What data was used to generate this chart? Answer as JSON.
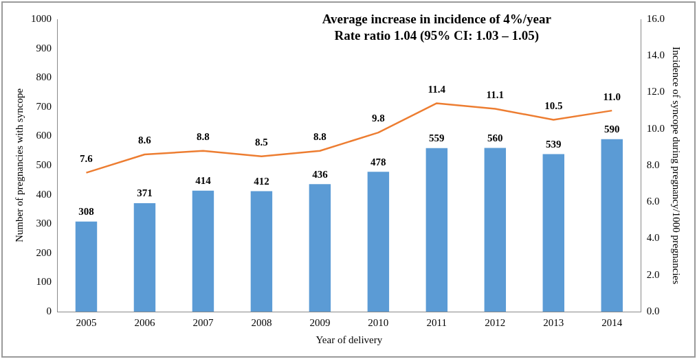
{
  "chart_data": {
    "type": "bar",
    "title": "Average increase in incidence of 4%/year",
    "subtitle": "Rate ratio 1.04 (95% CI: 1.03 – 1.05)",
    "xlabel": "Year of delivery",
    "ylabel": "Number of pregnancies with syncope",
    "y2label": "Incidence of syncope during pregnancy/1000 pregnancies",
    "categories": [
      "2005",
      "2006",
      "2007",
      "2008",
      "2009",
      "2010",
      "2011",
      "2012",
      "2013",
      "2014"
    ],
    "series": [
      {
        "color": "#5b9bd5",
        "values": [
          308,
          371,
          414,
          412,
          436,
          478,
          559,
          560,
          539,
          590
        ]
      },
      {
        "type": "line",
        "axis": "y2",
        "color": "#ed7d31",
        "values": [
          7.6,
          8.6,
          8.8,
          8.5,
          8.8,
          9.8,
          11.4,
          11.1,
          10.5,
          11.0
        ],
        "value_labels": [
          "7.6",
          "8.6",
          "8.8",
          "8.5",
          "8.8",
          "9.8",
          "11.4",
          "11.1",
          "10.5",
          "11.0"
        ]
      }
    ],
    "ylim": [
      0,
      1000
    ],
    "yticks": [
      0,
      100,
      200,
      300,
      400,
      500,
      600,
      700,
      800,
      900,
      1000
    ],
    "y2lim": [
      0,
      16
    ],
    "y2ticks": [
      {
        "value": 0,
        "label": "0.0"
      },
      {
        "value": 2,
        "label": "2.0"
      },
      {
        "value": 4,
        "label": "4.0"
      },
      {
        "value": 6,
        "label": "6.0"
      },
      {
        "value": 8,
        "label": "8.0"
      },
      {
        "value": 10,
        "label": "10.0"
      },
      {
        "value": 12,
        "label": "12.0"
      },
      {
        "value": 14,
        "label": "14.0"
      },
      {
        "value": 16,
        "label": "16.0"
      }
    ],
    "data_labels": true,
    "grid": false,
    "legend": false,
    "marker": "none",
    "line_style": "solid"
  }
}
